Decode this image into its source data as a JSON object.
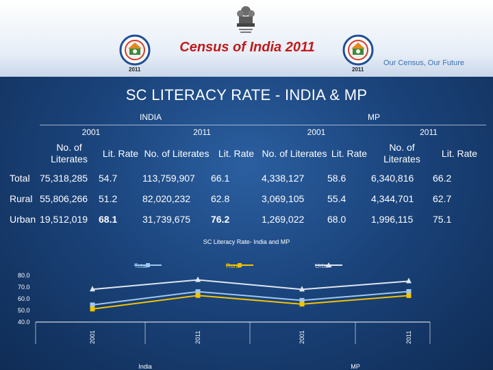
{
  "header": {
    "title": "Census of India 2011",
    "tagline": "Our Census, Our Future",
    "logo_year": "2011"
  },
  "slide": {
    "title": "SC LITERACY RATE - INDIA & MP"
  },
  "table": {
    "groups": [
      "INDIA",
      "MP"
    ],
    "years": [
      "2001",
      "2011",
      "2001",
      "2011"
    ],
    "col_literates": "No. of Literates",
    "col_lit_rate": "Lit. Rate",
    "rows": [
      {
        "label": "Total",
        "india_2001_lit": "75,318,285",
        "india_2001_rate": "54.7",
        "india_2011_lit": "113,759,907",
        "india_2011_rate": "66.1",
        "mp_2001_lit": "4,338,127",
        "mp_2001_rate": "58.6",
        "mp_2011_lit": "6,340,816",
        "mp_2011_rate": "66.2"
      },
      {
        "label": "Rural",
        "india_2001_lit": "55,806,266",
        "india_2001_rate": "51.2",
        "india_2011_lit": "82,020,232",
        "india_2011_rate": "62.8",
        "mp_2001_lit": "3,069,105",
        "mp_2001_rate": "55.4",
        "mp_2011_lit": "4,344,701",
        "mp_2011_rate": "62.7"
      },
      {
        "label": "Urban",
        "india_2001_lit": "19,512,019",
        "india_2001_rate": "68.1",
        "india_2011_lit": "31,739,675",
        "india_2011_rate": "76.2",
        "mp_2001_lit": "1,269,022",
        "mp_2001_rate": "68.0",
        "mp_2011_lit": "1,996,115",
        "mp_2011_rate": "75.1"
      }
    ]
  },
  "chart_data": {
    "type": "line",
    "title": "SC Literacy Rate- India and MP",
    "categories": [
      "2001",
      "2011",
      "2001",
      "2011"
    ],
    "groups": [
      "India",
      "MP"
    ],
    "ylim": [
      40,
      80
    ],
    "yticks": [
      "80.0",
      "70.0",
      "60.0",
      "50.0",
      "40.0"
    ],
    "series": [
      {
        "name": "Total",
        "values": [
          54.7,
          66.1,
          58.6,
          66.2
        ],
        "color": "#9fc8ef"
      },
      {
        "name": "Rural",
        "values": [
          51.2,
          62.8,
          55.4,
          62.7
        ],
        "color": "#f3c400"
      },
      {
        "name": "Urban",
        "values": [
          68.1,
          76.2,
          68.0,
          75.1
        ],
        "color": "#dfe6f0"
      }
    ],
    "legend_position": "top"
  }
}
